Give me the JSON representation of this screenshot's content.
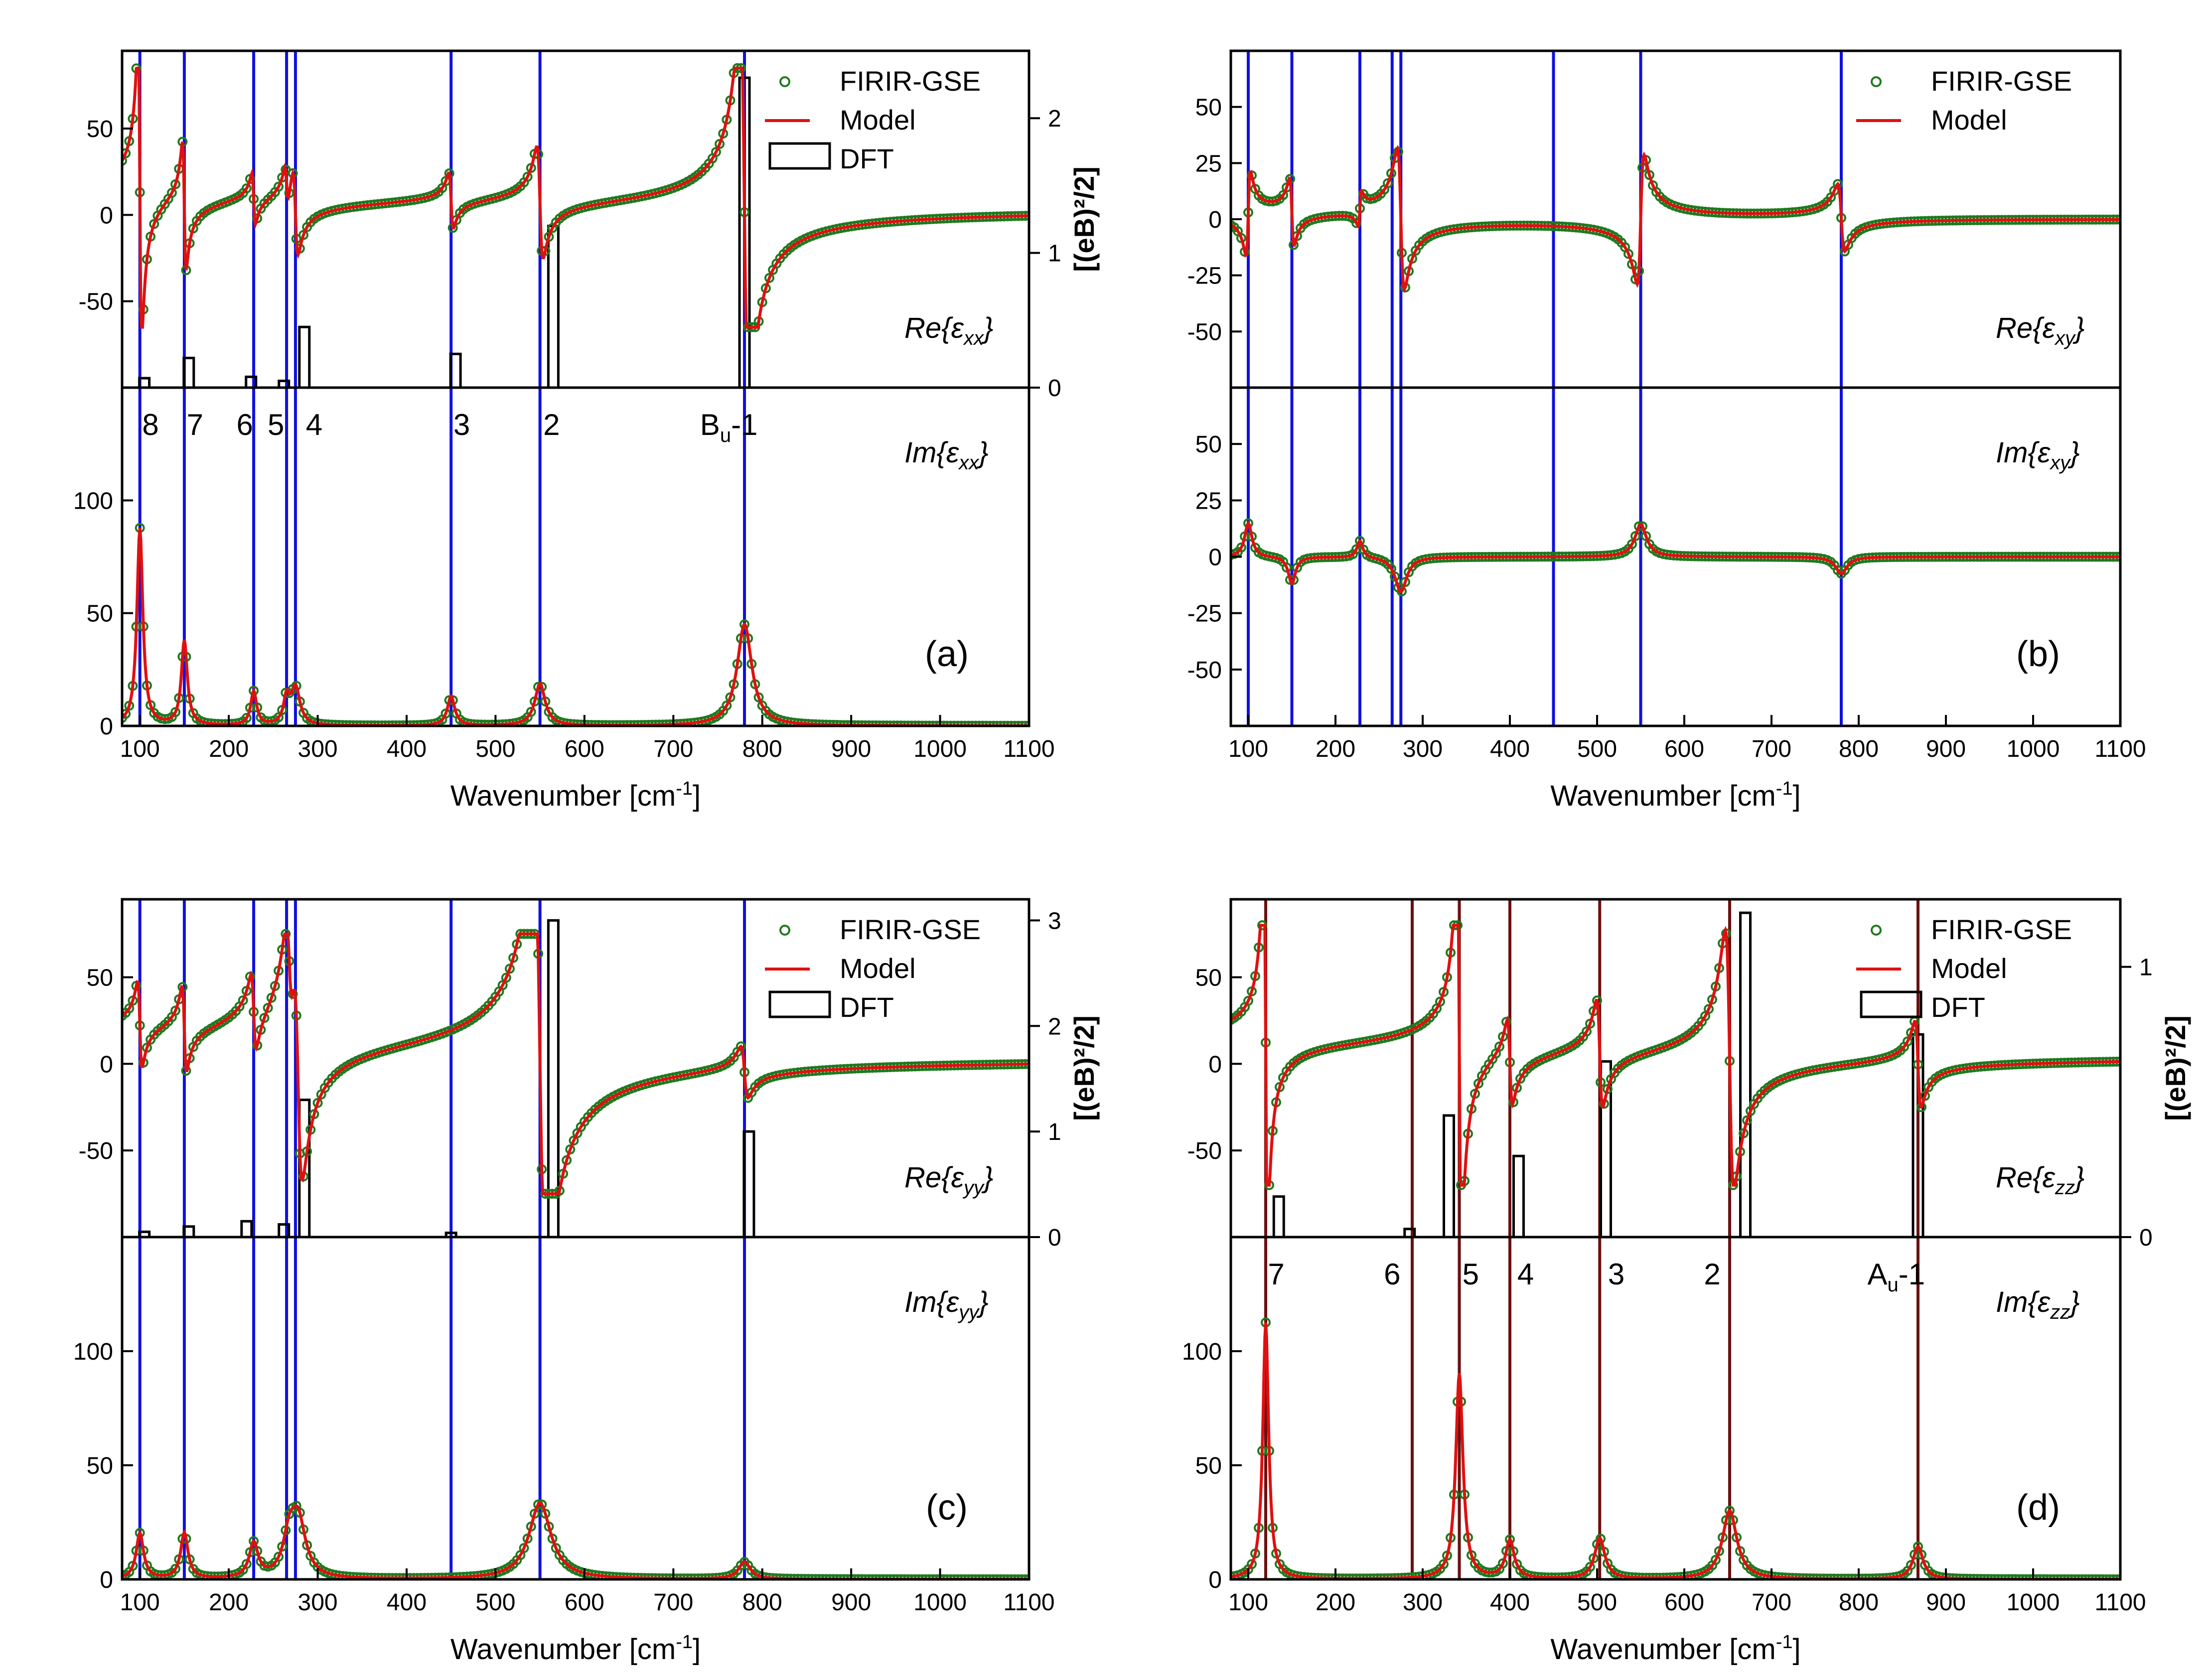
{
  "colors": {
    "data": "#1f7a1f",
    "model": "#e01010",
    "dft": "#000000",
    "vline_b": "#1010e0",
    "vline_a": "#6b1010"
  },
  "chart_data": [
    {
      "id": "a",
      "type": "line",
      "panel_label": "(a)",
      "xlabel": "Wavenumber [cm",
      "xlabel_sup": "-1",
      "xlabel_end": "]",
      "xlim": [
        80,
        1100
      ],
      "xticks": [
        100,
        200,
        300,
        400,
        500,
        600,
        700,
        800,
        900,
        1000,
        1100
      ],
      "legend": [
        "FIRIR-GSE",
        "Model",
        "DFT"
      ],
      "mode_lines": [
        100,
        150,
        228,
        265,
        275,
        450,
        550,
        780
      ],
      "mode_line_color": "blue",
      "mode_labels": [
        {
          "text": "8",
          "x": 112
        },
        {
          "text": "7",
          "x": 162
        },
        {
          "text": "6",
          "x": 218
        },
        {
          "text": "5",
          "x": 253
        },
        {
          "text": "4",
          "x": 296
        },
        {
          "text": "3",
          "x": 462
        },
        {
          "text": "2",
          "x": 563
        },
        {
          "text": "B",
          "sub": "u",
          "rest": "-1",
          "x": 730
        }
      ],
      "re": {
        "label": "Re{ε",
        "sub": "xx",
        "close": "}",
        "ylim": [
          -100,
          95
        ],
        "yticks": [
          -50,
          0,
          50
        ],
        "osc": [
          {
            "x0": 100,
            "A": 700,
            "g": 4
          },
          {
            "x0": 150,
            "A": 300,
            "g": 4
          },
          {
            "x0": 228,
            "A": 120,
            "g": 4
          },
          {
            "x0": 265,
            "A": 90,
            "g": 4
          },
          {
            "x0": 275,
            "A": 200,
            "g": 6
          },
          {
            "x0": 450,
            "A": 130,
            "g": 5
          },
          {
            "x0": 550,
            "A": 260,
            "g": 7
          },
          {
            "x0": 780,
            "A": 900,
            "g": 10
          }
        ],
        "baseline": 3,
        "clip": [
          -65,
          85
        ]
      },
      "im": {
        "label": "Im{ε",
        "sub": "xx",
        "close": "}",
        "ylim": [
          0,
          150
        ],
        "yticks": [
          0,
          50,
          100
        ],
        "osc": [
          {
            "x0": 100,
            "A": 700,
            "g": 4
          },
          {
            "x0": 150,
            "A": 300,
            "g": 4
          },
          {
            "x0": 228,
            "A": 120,
            "g": 4
          },
          {
            "x0": 265,
            "A": 90,
            "g": 4
          },
          {
            "x0": 275,
            "A": 200,
            "g": 6
          },
          {
            "x0": 450,
            "A": 130,
            "g": 5
          },
          {
            "x0": 550,
            "A": 260,
            "g": 7
          },
          {
            "x0": 780,
            "A": 900,
            "g": 10
          }
        ]
      },
      "dft": {
        "ylabel": "[(eB)²/2]",
        "ylim": [
          0,
          2.5
        ],
        "yticks": [
          0,
          1,
          2
        ],
        "bars": [
          {
            "x": 105,
            "h": 0.07
          },
          {
            "x": 155,
            "h": 0.22
          },
          {
            "x": 225,
            "h": 0.08
          },
          {
            "x": 262,
            "h": 0.05
          },
          {
            "x": 285,
            "h": 0.45
          },
          {
            "x": 455,
            "h": 0.25
          },
          {
            "x": 565,
            "h": 1.2
          },
          {
            "x": 780,
            "h": 2.3
          }
        ]
      }
    },
    {
      "id": "b",
      "type": "line",
      "panel_label": "(b)",
      "xlabel": "Wavenumber [cm",
      "xlabel_sup": "-1",
      "xlabel_end": "]",
      "xlim": [
        80,
        1100
      ],
      "xticks": [
        100,
        200,
        300,
        400,
        500,
        600,
        700,
        800,
        900,
        1000,
        1100
      ],
      "legend": [
        "FIRIR-GSE",
        "Model"
      ],
      "mode_lines": [
        100,
        150,
        228,
        265,
        275,
        450,
        550,
        780
      ],
      "mode_line_color": "blue",
      "mode_labels": [],
      "re": {
        "label": "Re{ε",
        "sub": "xy",
        "close": "}",
        "ylim": [
          -75,
          75
        ],
        "yticks": [
          -50,
          -25,
          0,
          25,
          50
        ],
        "osc": [
          {
            "x0": 100,
            "A": -150,
            "g": 5
          },
          {
            "x0": 150,
            "A": 120,
            "g": 5
          },
          {
            "x0": 228,
            "A": -60,
            "g": 4
          },
          {
            "x0": 275,
            "A": 250,
            "g": 8
          },
          {
            "x0": 550,
            "A": -230,
            "g": 8
          },
          {
            "x0": 780,
            "A": 120,
            "g": 8
          }
        ],
        "baseline": 0,
        "clip": [
          -40,
          40
        ]
      },
      "im": {
        "label": "Im{ε",
        "sub": "xy",
        "close": "}",
        "ylim": [
          -75,
          75
        ],
        "yticks": [
          -50,
          -25,
          0,
          25,
          50
        ],
        "osc": [
          {
            "x0": 100,
            "A": -150,
            "g": 5
          },
          {
            "x0": 150,
            "A": 120,
            "g": 5
          },
          {
            "x0": 228,
            "A": -60,
            "g": 4
          },
          {
            "x0": 275,
            "A": 250,
            "g": 8
          },
          {
            "x0": 550,
            "A": -230,
            "g": 8
          },
          {
            "x0": 780,
            "A": 120,
            "g": 8
          }
        ],
        "sign": -1
      },
      "dft": null
    },
    {
      "id": "c",
      "type": "line",
      "panel_label": "(c)",
      "xlabel": "Wavenumber [cm",
      "xlabel_sup": "-1",
      "xlabel_end": "]",
      "xlim": [
        80,
        1100
      ],
      "xticks": [
        100,
        200,
        300,
        400,
        500,
        600,
        700,
        800,
        900,
        1000,
        1100
      ],
      "legend": [
        "FIRIR-GSE",
        "Model",
        "DFT"
      ],
      "mode_lines": [
        100,
        150,
        228,
        265,
        275,
        450,
        550,
        780
      ],
      "mode_line_color": "blue",
      "mode_labels": [],
      "re": {
        "label": "Re{ε",
        "sub": "yy",
        "close": "}",
        "ylim": [
          -100,
          95
        ],
        "yticks": [
          -50,
          0,
          50
        ],
        "osc": [
          {
            "x0": 100,
            "A": 200,
            "g": 5
          },
          {
            "x0": 150,
            "A": 200,
            "g": 5
          },
          {
            "x0": 228,
            "A": 180,
            "g": 6
          },
          {
            "x0": 268,
            "A": 250,
            "g": 8
          },
          {
            "x0": 278,
            "A": 500,
            "g": 10
          },
          {
            "x0": 550,
            "A": 1000,
            "g": 15
          },
          {
            "x0": 780,
            "A": 120,
            "g": 8
          }
        ],
        "baseline": 3,
        "clip": [
          -75,
          75
        ]
      },
      "im": {
        "label": "Im{ε",
        "sub": "yy",
        "close": "}",
        "ylim": [
          0,
          150
        ],
        "yticks": [
          0,
          50,
          100
        ],
        "osc": [
          {
            "x0": 100,
            "A": 200,
            "g": 5
          },
          {
            "x0": 150,
            "A": 200,
            "g": 5
          },
          {
            "x0": 228,
            "A": 180,
            "g": 6
          },
          {
            "x0": 268,
            "A": 250,
            "g": 8
          },
          {
            "x0": 278,
            "A": 500,
            "g": 10
          },
          {
            "x0": 550,
            "A": 1000,
            "g": 15
          },
          {
            "x0": 780,
            "A": 120,
            "g": 8
          }
        ]
      },
      "dft": {
        "ylabel": "[(eB)²/2]",
        "ylim": [
          0,
          3.2
        ],
        "yticks": [
          0,
          1,
          2,
          3
        ],
        "bars": [
          {
            "x": 105,
            "h": 0.05
          },
          {
            "x": 155,
            "h": 0.1
          },
          {
            "x": 220,
            "h": 0.15
          },
          {
            "x": 262,
            "h": 0.12
          },
          {
            "x": 285,
            "h": 1.3
          },
          {
            "x": 450,
            "h": 0.04
          },
          {
            "x": 565,
            "h": 3.0
          },
          {
            "x": 785,
            "h": 1.0
          }
        ]
      }
    },
    {
      "id": "d",
      "type": "line",
      "panel_label": "(d)",
      "xlabel": "Wavenumber [cm",
      "xlabel_sup": "-1",
      "xlabel_end": "]",
      "xlim": [
        80,
        1100
      ],
      "xticks": [
        100,
        200,
        300,
        400,
        500,
        600,
        700,
        800,
        900,
        1000,
        1100
      ],
      "legend": [
        "FIRIR-GSE",
        "Model",
        "DFT"
      ],
      "mode_lines": [
        120,
        288,
        342,
        400,
        503,
        652,
        868
      ],
      "mode_line_color": "darkred",
      "mode_labels": [
        {
          "text": "7",
          "x": 132
        },
        {
          "text": "6",
          "x": 265
        },
        {
          "text": "5",
          "x": 355
        },
        {
          "text": "4",
          "x": 418
        },
        {
          "text": "3",
          "x": 522
        },
        {
          "text": "2",
          "x": 632
        },
        {
          "text": "A",
          "sub": "u",
          "rest": "-1",
          "x": 810
        }
      ],
      "re": {
        "label": "Re{ε",
        "sub": "zz",
        "close": "}",
        "ylim": [
          -100,
          95
        ],
        "yticks": [
          -50,
          0,
          50
        ],
        "osc": [
          {
            "x0": 120,
            "A": 900,
            "g": 4
          },
          {
            "x0": 342,
            "A": 900,
            "g": 5
          },
          {
            "x0": 400,
            "A": 200,
            "g": 6
          },
          {
            "x0": 503,
            "A": 250,
            "g": 7
          },
          {
            "x0": 652,
            "A": 600,
            "g": 10
          },
          {
            "x0": 868,
            "A": 200,
            "g": 7
          }
        ],
        "baseline": 4,
        "clip": [
          -70,
          80
        ]
      },
      "im": {
        "label": "Im{ε",
        "sub": "zz",
        "close": "}",
        "ylim": [
          0,
          150
        ],
        "yticks": [
          0,
          50,
          100
        ],
        "osc": [
          {
            "x0": 120,
            "A": 900,
            "g": 4
          },
          {
            "x0": 342,
            "A": 900,
            "g": 5
          },
          {
            "x0": 400,
            "A": 200,
            "g": 6
          },
          {
            "x0": 503,
            "A": 250,
            "g": 7
          },
          {
            "x0": 652,
            "A": 600,
            "g": 10
          },
          {
            "x0": 868,
            "A": 200,
            "g": 7
          }
        ]
      },
      "dft": {
        "ylabel": "[(eB)²/2]",
        "ylim": [
          0,
          1.25
        ],
        "yticks": [
          0,
          1
        ],
        "bars": [
          {
            "x": 135,
            "h": 0.15
          },
          {
            "x": 285,
            "h": 0.03
          },
          {
            "x": 330,
            "h": 0.45
          },
          {
            "x": 410,
            "h": 0.3
          },
          {
            "x": 510,
            "h": 0.65
          },
          {
            "x": 670,
            "h": 1.2
          },
          {
            "x": 868,
            "h": 0.75
          }
        ]
      }
    }
  ]
}
